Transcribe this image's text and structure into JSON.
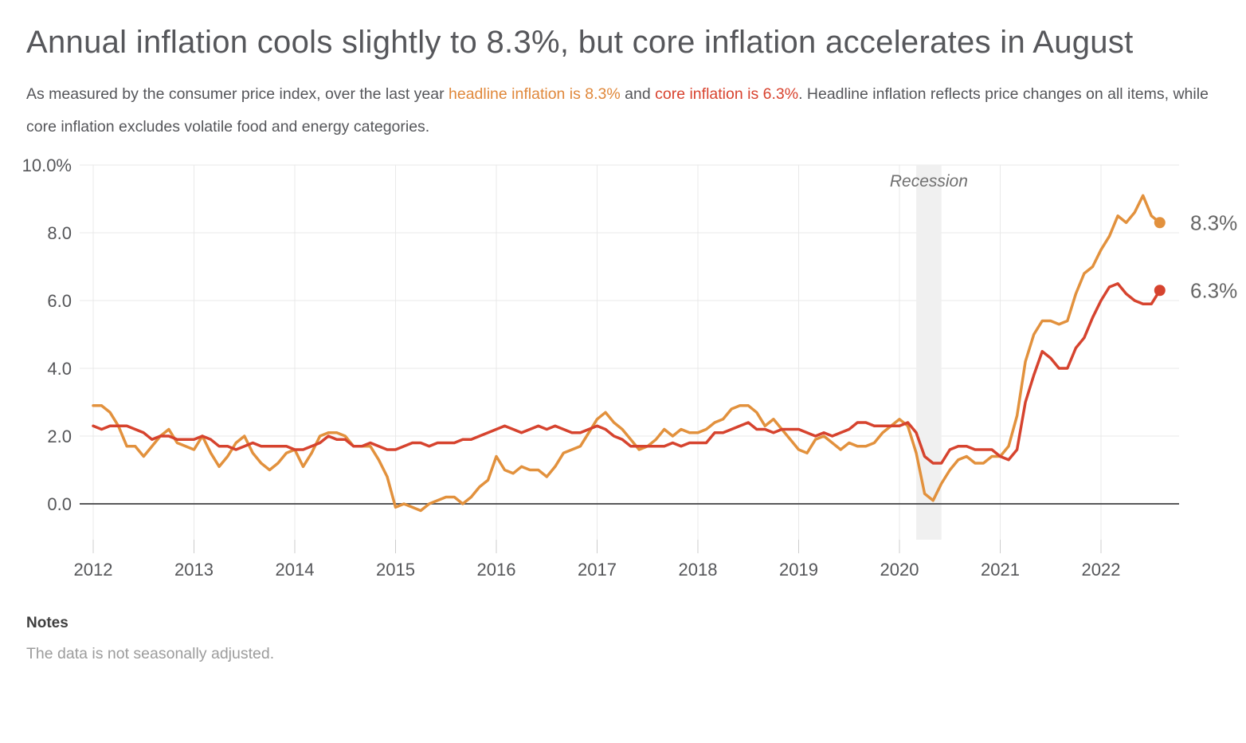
{
  "page": {
    "title": "Annual inflation cools slightly to 8.3%, but core inflation accelerates in August",
    "subtitle_segments": [
      {
        "text": "As measured by the consumer price index, over the last year ",
        "color": "#55565A"
      },
      {
        "text": "headline inflation is 8.3%",
        "color": "#E0883B"
      },
      {
        "text": " and ",
        "color": "#55565A"
      },
      {
        "text": "core inflation is 6.3%",
        "color": "#D8432F"
      },
      {
        "text": ". Headline inflation reflects price changes on all items, while core inflation excludes volatile food and energy categories.",
        "color": "#55565A"
      }
    ],
    "notes": {
      "label": "Notes",
      "text": "The data is not seasonally adjusted."
    }
  },
  "chart_data": {
    "type": "line",
    "title": "Annual inflation, headline vs core, 2012-2022",
    "frequency": "monthly",
    "x_start": "2012-01",
    "x_end": "2022-08",
    "x_tick_labels": [
      "2012",
      "2013",
      "2014",
      "2015",
      "2016",
      "2017",
      "2018",
      "2019",
      "2020",
      "2021",
      "2022"
    ],
    "y_ticks": [
      0,
      2,
      4,
      6,
      8,
      10
    ],
    "y_tick_labels": [
      "0.0",
      "2.0",
      "4.0",
      "6.0",
      "8.0",
      "10.0%"
    ],
    "ylim": [
      -1.1,
      10
    ],
    "grid": "both",
    "grid_color": "#E9E9E9",
    "zero_line_color": "#58585A",
    "axis_label_color": "#555659",
    "end_label_color": "#666666",
    "annotations": {
      "recession": {
        "label": "Recession",
        "start": "2020-02",
        "end": "2020-04",
        "band_color": "#F0F0F0",
        "label_color": "#6F6F6F"
      }
    },
    "series": [
      {
        "name": "Headline inflation",
        "color": "#E2913D",
        "end_label": "8.3%",
        "values": [
          2.9,
          2.9,
          2.7,
          2.3,
          1.7,
          1.7,
          1.4,
          1.7,
          2.0,
          2.2,
          1.8,
          1.7,
          1.6,
          2.0,
          1.5,
          1.1,
          1.4,
          1.8,
          2.0,
          1.5,
          1.2,
          1.0,
          1.2,
          1.5,
          1.6,
          1.1,
          1.5,
          2.0,
          2.1,
          2.1,
          2.0,
          1.7,
          1.7,
          1.7,
          1.3,
          0.8,
          -0.1,
          0.0,
          -0.1,
          -0.2,
          0.0,
          0.1,
          0.2,
          0.2,
          0.0,
          0.2,
          0.5,
          0.7,
          1.4,
          1.0,
          0.9,
          1.1,
          1.0,
          1.0,
          0.8,
          1.1,
          1.5,
          1.6,
          1.7,
          2.1,
          2.5,
          2.7,
          2.4,
          2.2,
          1.9,
          1.6,
          1.7,
          1.9,
          2.2,
          2.0,
          2.2,
          2.1,
          2.1,
          2.2,
          2.4,
          2.5,
          2.8,
          2.9,
          2.9,
          2.7,
          2.3,
          2.5,
          2.2,
          1.9,
          1.6,
          1.5,
          1.9,
          2.0,
          1.8,
          1.6,
          1.8,
          1.7,
          1.7,
          1.8,
          2.1,
          2.3,
          2.5,
          2.3,
          1.5,
          0.3,
          0.1,
          0.6,
          1.0,
          1.3,
          1.4,
          1.2,
          1.2,
          1.4,
          1.4,
          1.7,
          2.6,
          4.2,
          5.0,
          5.4,
          5.4,
          5.3,
          5.4,
          6.2,
          6.8,
          7.0,
          7.5,
          7.9,
          8.5,
          8.3,
          8.6,
          9.1,
          8.5,
          8.3
        ]
      },
      {
        "name": "Core inflation",
        "color": "#D6432E",
        "end_label": "6.3%",
        "values": [
          2.3,
          2.2,
          2.3,
          2.3,
          2.3,
          2.2,
          2.1,
          1.9,
          2.0,
          2.0,
          1.9,
          1.9,
          1.9,
          2.0,
          1.9,
          1.7,
          1.7,
          1.6,
          1.7,
          1.8,
          1.7,
          1.7,
          1.7,
          1.7,
          1.6,
          1.6,
          1.7,
          1.8,
          2.0,
          1.9,
          1.9,
          1.7,
          1.7,
          1.8,
          1.7,
          1.6,
          1.6,
          1.7,
          1.8,
          1.8,
          1.7,
          1.8,
          1.8,
          1.8,
          1.9,
          1.9,
          2.0,
          2.1,
          2.2,
          2.3,
          2.2,
          2.1,
          2.2,
          2.3,
          2.2,
          2.3,
          2.2,
          2.1,
          2.1,
          2.2,
          2.3,
          2.2,
          2.0,
          1.9,
          1.7,
          1.7,
          1.7,
          1.7,
          1.7,
          1.8,
          1.7,
          1.8,
          1.8,
          1.8,
          2.1,
          2.1,
          2.2,
          2.3,
          2.4,
          2.2,
          2.2,
          2.1,
          2.2,
          2.2,
          2.2,
          2.1,
          2.0,
          2.1,
          2.0,
          2.1,
          2.2,
          2.4,
          2.4,
          2.3,
          2.3,
          2.3,
          2.3,
          2.4,
          2.1,
          1.4,
          1.2,
          1.2,
          1.6,
          1.7,
          1.7,
          1.6,
          1.6,
          1.6,
          1.4,
          1.3,
          1.6,
          3.0,
          3.8,
          4.5,
          4.3,
          4.0,
          4.0,
          4.6,
          4.9,
          5.5,
          6.0,
          6.4,
          6.5,
          6.2,
          6.0,
          5.9,
          5.9,
          6.3
        ]
      }
    ]
  }
}
